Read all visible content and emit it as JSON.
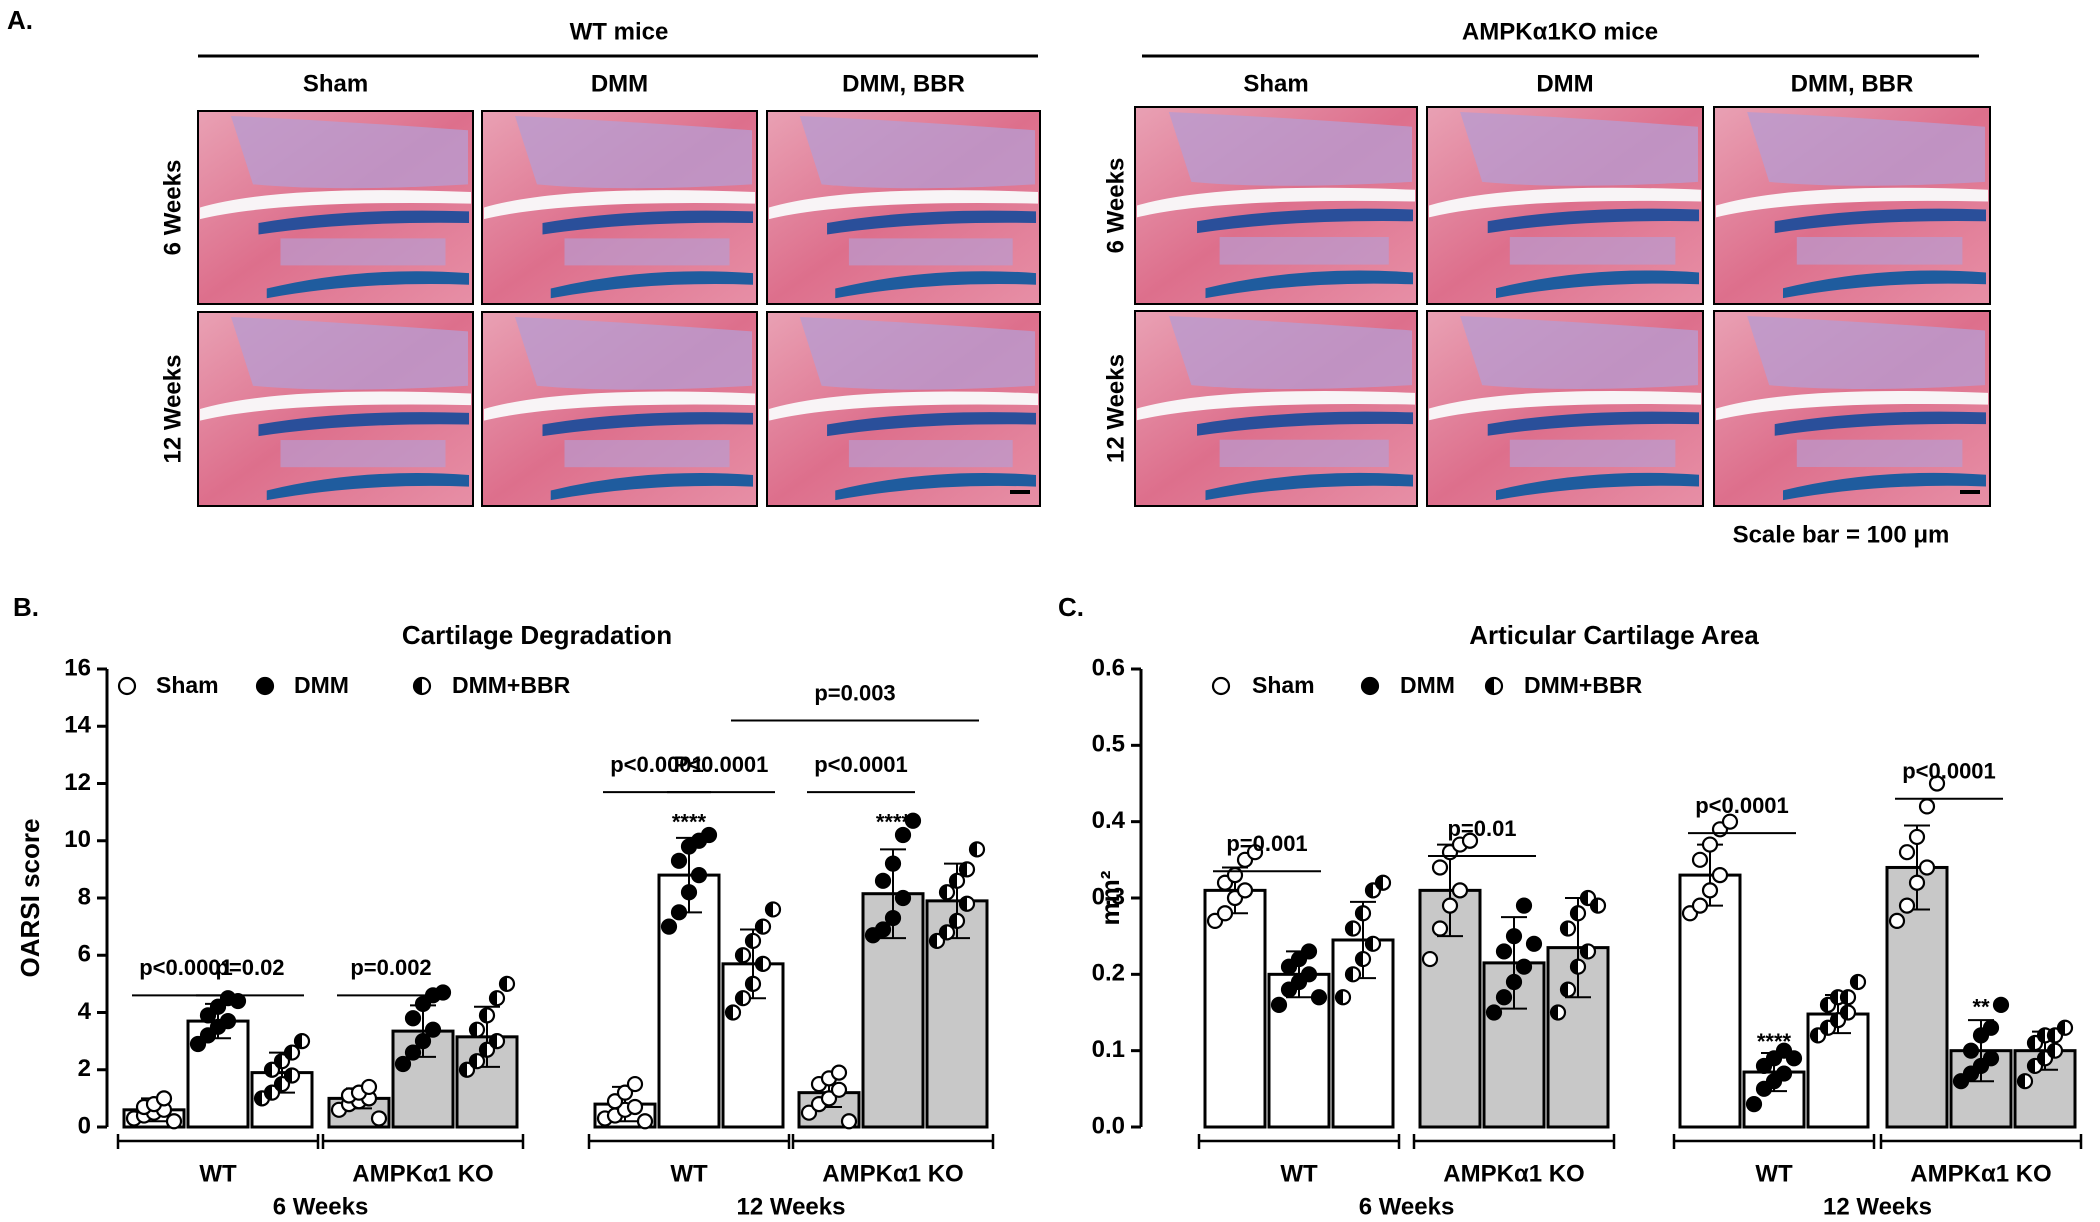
{
  "panel_a": {
    "label": "A.",
    "groups": [
      {
        "title": "WT mice",
        "columns": [
          "Sham",
          "DMM",
          "DMM, BBR"
        ],
        "rows": [
          "6 Weeks",
          "12 Weeks"
        ]
      },
      {
        "title": "AMPKα1KO mice",
        "columns": [
          "Sham",
          "DMM",
          "DMM, BBR"
        ],
        "rows": [
          "6 Weeks",
          "12 Weeks"
        ]
      }
    ],
    "scale_bar": "Scale bar = 100 μm"
  },
  "chart_data": [
    {
      "type": "bar",
      "panel": "B.",
      "title": "Cartilage Degradation",
      "ylabel": "OARSI score",
      "ylim": [
        0,
        16
      ],
      "yticks": [
        0,
        2,
        4,
        6,
        8,
        10,
        12,
        14,
        16
      ],
      "categories": [
        "WT",
        "AMPKα1 KO",
        "WT",
        "AMPKα1 KO"
      ],
      "groups": [
        "6 Weeks",
        "12 Weeks"
      ],
      "bar_colors": [
        "#ffffff",
        "#c8c8c8",
        "#ffffff",
        "#c8c8c8"
      ],
      "series": [
        {
          "name": "Sham",
          "marker": "open",
          "values": [
            0.6,
            1.0,
            0.8,
            1.2
          ],
          "errors": [
            0.4,
            0.35,
            0.6,
            0.5
          ],
          "points": [
            [
              0.3,
              0.4,
              0.5,
              0.6,
              0.7,
              0.8,
              1.0,
              0.2
            ],
            [
              0.6,
              0.8,
              0.9,
              1.0,
              1.1,
              1.2,
              1.4,
              0.3
            ],
            [
              0.3,
              0.4,
              0.6,
              0.7,
              0.9,
              1.2,
              1.5,
              0.2
            ],
            [
              0.5,
              0.8,
              1.0,
              1.3,
              1.5,
              1.7,
              1.9,
              0.2
            ]
          ]
        },
        {
          "name": "DMM",
          "marker": "filled",
          "values": [
            3.7,
            3.35,
            8.8,
            8.15
          ],
          "errors": [
            0.6,
            0.9,
            1.3,
            1.55
          ],
          "points": [
            [
              2.9,
              3.2,
              3.5,
              3.7,
              3.9,
              4.2,
              4.5,
              4.4
            ],
            [
              2.2,
              2.6,
              3.0,
              3.4,
              3.8,
              4.3,
              4.6,
              4.7
            ],
            [
              7.0,
              7.5,
              8.2,
              8.8,
              9.3,
              9.8,
              10.0,
              10.2
            ],
            [
              6.7,
              6.9,
              7.3,
              8.0,
              8.6,
              9.2,
              10.2,
              10.7
            ]
          ]
        },
        {
          "name": "DMM+BBR",
          "marker": "half",
          "values": [
            1.9,
            3.15,
            5.7,
            7.9
          ],
          "errors": [
            0.7,
            1.05,
            1.2,
            1.3
          ],
          "points": [
            [
              1.0,
              1.2,
              1.5,
              1.8,
              2.0,
              2.3,
              2.6,
              3.0
            ],
            [
              2.0,
              2.3,
              2.7,
              3.0,
              3.4,
              3.9,
              4.5,
              5.0
            ],
            [
              4.0,
              4.5,
              5.0,
              5.7,
              6.0,
              6.5,
              7.0,
              7.6
            ],
            [
              6.5,
              6.8,
              7.2,
              7.8,
              8.2,
              8.6,
              9.0,
              9.7
            ]
          ]
        }
      ],
      "annotations": [
        "p<0.0001",
        "p=0.02",
        "p=0.002",
        "p<0.0001",
        "P<0.0001",
        "p<0.0001",
        "p=0.003",
        "****",
        "****"
      ]
    },
    {
      "type": "bar",
      "panel": "C.",
      "title": "Articular Cartilage Area",
      "ylabel": "mm²",
      "ylim": [
        0,
        0.6
      ],
      "yticks": [
        {
          "value": 0,
          "label": "0.0"
        },
        0.1,
        0.2,
        0.3,
        0.4,
        0.5,
        0.6
      ],
      "categories": [
        "WT",
        "AMPKα1 KO",
        "WT",
        "AMPKα1 KO"
      ],
      "groups": [
        "6 Weeks",
        "12 Weeks"
      ],
      "bar_colors": [
        "#ffffff",
        "#c8c8c8",
        "#ffffff",
        "#c8c8c8"
      ],
      "series": [
        {
          "name": "Sham",
          "marker": "open",
          "values": [
            0.31,
            0.31,
            0.33,
            0.34
          ],
          "errors": [
            0.03,
            0.06,
            0.04,
            0.055
          ],
          "points": [
            [
              0.27,
              0.28,
              0.3,
              0.31,
              0.32,
              0.33,
              0.35,
              0.36
            ],
            [
              0.22,
              0.26,
              0.29,
              0.31,
              0.34,
              0.36,
              0.37,
              0.375
            ],
            [
              0.28,
              0.29,
              0.31,
              0.33,
              0.35,
              0.37,
              0.39,
              0.4
            ],
            [
              0.27,
              0.29,
              0.32,
              0.34,
              0.36,
              0.38,
              0.42,
              0.45
            ]
          ]
        },
        {
          "name": "DMM",
          "marker": "filled",
          "values": [
            0.2,
            0.215,
            0.072,
            0.1
          ],
          "errors": [
            0.03,
            0.06,
            0.025,
            0.04
          ],
          "points": [
            [
              0.16,
              0.18,
              0.19,
              0.2,
              0.21,
              0.22,
              0.23,
              0.17
            ],
            [
              0.15,
              0.17,
              0.19,
              0.21,
              0.23,
              0.25,
              0.29,
              0.24
            ],
            [
              0.03,
              0.05,
              0.06,
              0.07,
              0.08,
              0.09,
              0.1,
              0.09
            ],
            [
              0.06,
              0.07,
              0.08,
              0.09,
              0.1,
              0.12,
              0.13,
              0.16
            ]
          ]
        },
        {
          "name": "DMM+BBR",
          "marker": "half",
          "values": [
            0.245,
            0.235,
            0.148,
            0.1
          ],
          "errors": [
            0.05,
            0.065,
            0.025,
            0.025
          ],
          "points": [
            [
              0.17,
              0.2,
              0.22,
              0.24,
              0.26,
              0.28,
              0.31,
              0.32
            ],
            [
              0.15,
              0.18,
              0.21,
              0.23,
              0.26,
              0.28,
              0.3,
              0.29
            ],
            [
              0.12,
              0.13,
              0.14,
              0.15,
              0.16,
              0.17,
              0.17,
              0.19
            ],
            [
              0.06,
              0.08,
              0.09,
              0.1,
              0.11,
              0.12,
              0.12,
              0.13
            ]
          ]
        }
      ],
      "annotations": [
        "p=0.001",
        "p=0.01",
        "p<0.0001",
        "p<0.0001",
        "****",
        "**"
      ]
    }
  ]
}
